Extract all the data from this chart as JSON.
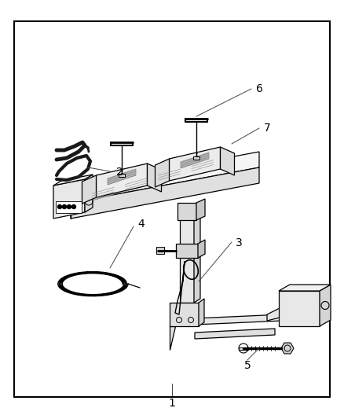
{
  "background_color": "#ffffff",
  "border_color": "#000000",
  "line_color": "#000000",
  "fig_width": 4.38,
  "fig_height": 5.33,
  "dpi": 100
}
